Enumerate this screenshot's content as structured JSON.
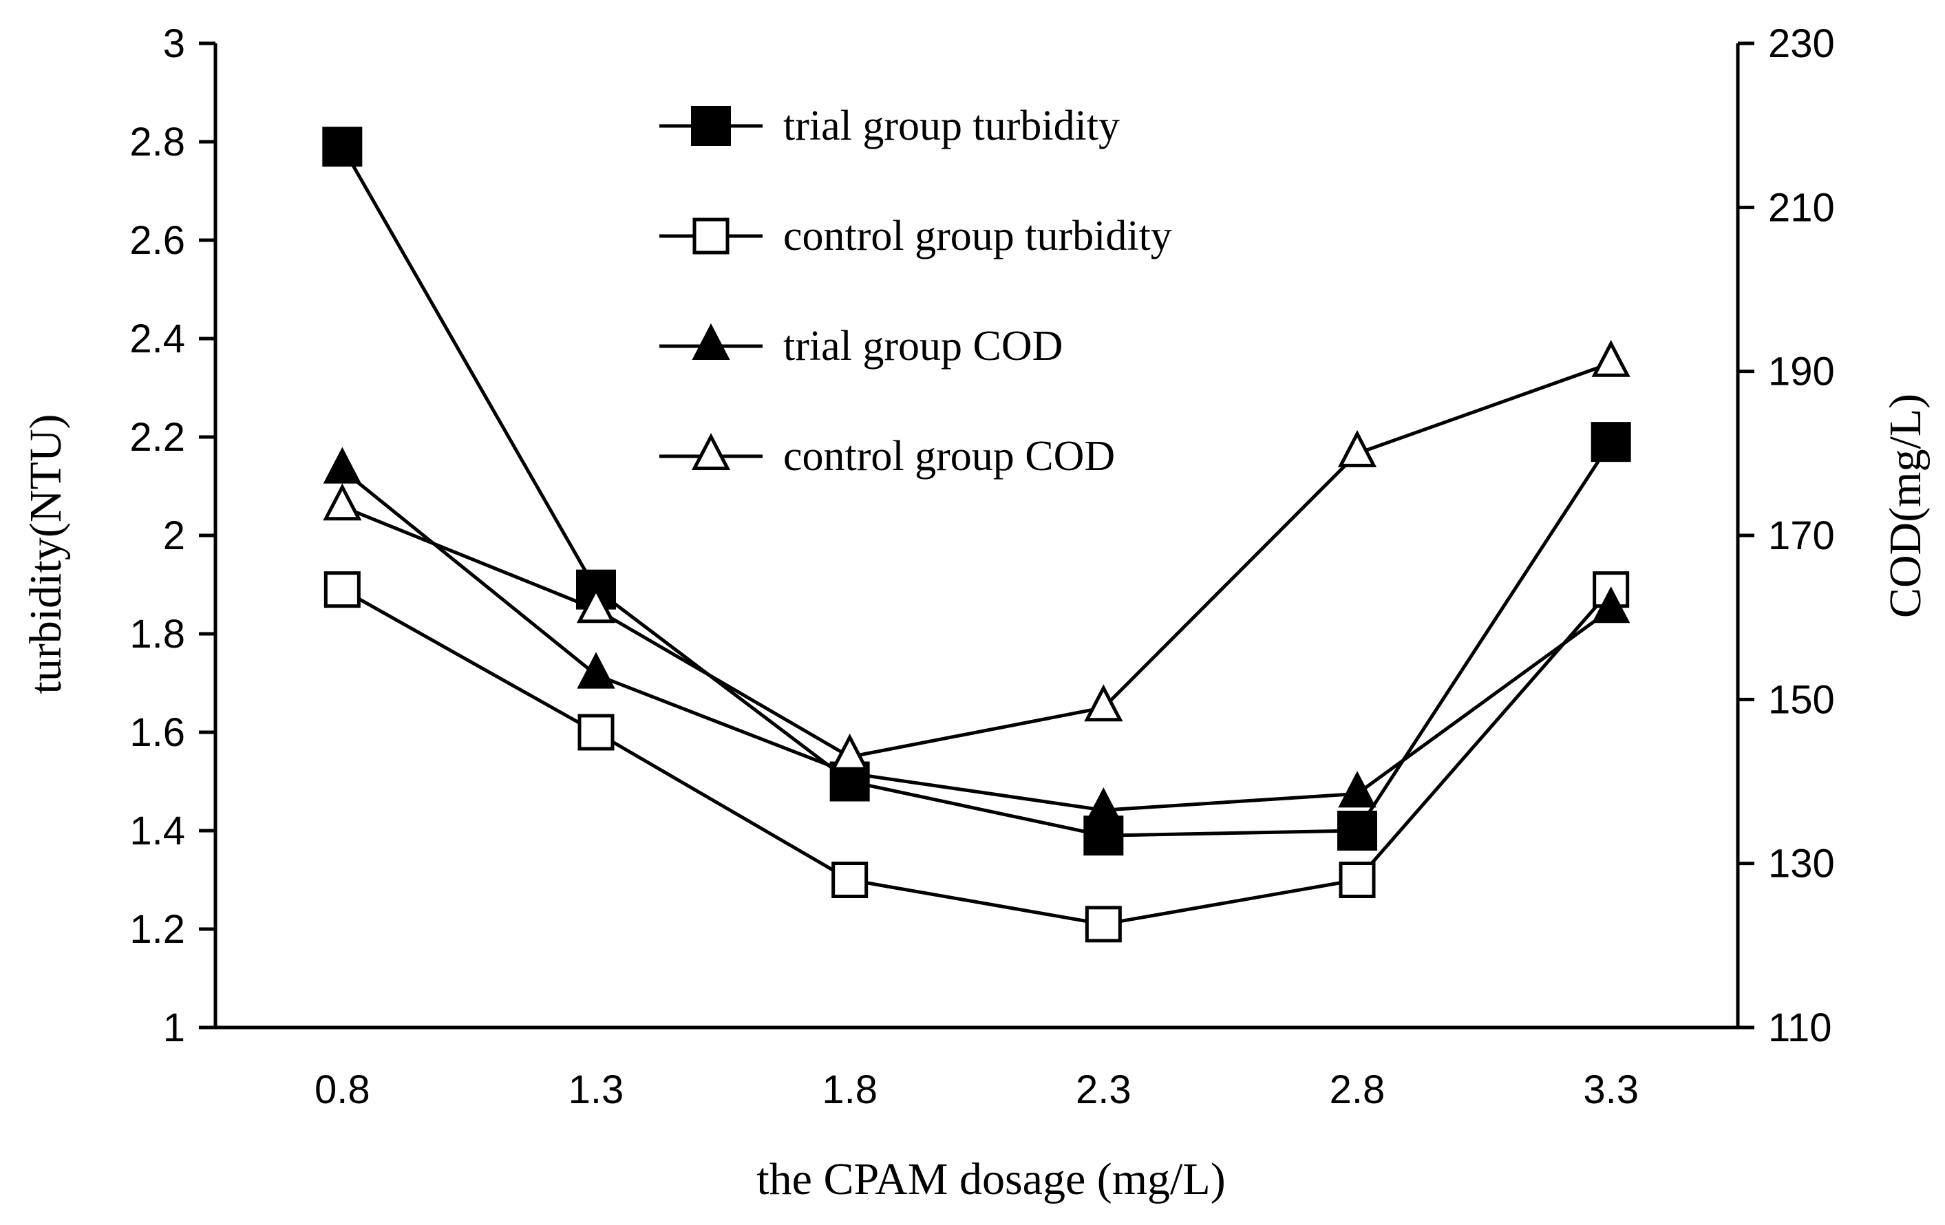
{
  "chart_data": {
    "type": "line",
    "xlabel": "the CPAM dosage (mg/L)",
    "ylabel_left": "turbidity(NTU)",
    "ylabel_right": "COD(mg/L)",
    "categories": [
      "0.8",
      "1.3",
      "1.8",
      "2.3",
      "2.8",
      "3.3"
    ],
    "x_values": [
      0.8,
      1.3,
      1.8,
      2.3,
      2.8,
      3.3
    ],
    "ylim_left": [
      1,
      3
    ],
    "yticks_left": [
      "1",
      "1.2",
      "1.4",
      "1.6",
      "1.8",
      "2",
      "2.2",
      "2.4",
      "2.6",
      "2.8",
      "3"
    ],
    "ylim_right": [
      110,
      230
    ],
    "yticks_right": [
      "110",
      "130",
      "150",
      "170",
      "190",
      "210",
      "230"
    ],
    "grid": false,
    "legend_position": "top-center",
    "series": [
      {
        "name": "trial group turbidity",
        "axis": "left",
        "marker": "square-filled",
        "values": [
          2.79,
          1.89,
          1.5,
          1.39,
          1.4,
          2.19
        ]
      },
      {
        "name": "control group turbidity",
        "axis": "left",
        "marker": "square-open",
        "values": [
          1.89,
          1.6,
          1.3,
          1.21,
          1.3,
          1.89
        ]
      },
      {
        "name": "trial group COD",
        "axis": "right",
        "marker": "triangle-filled",
        "values": [
          178,
          153,
          141,
          136.5,
          138.5,
          161
        ]
      },
      {
        "name": "control group COD",
        "axis": "right",
        "marker": "triangle-open",
        "values": [
          173.5,
          161,
          143,
          149,
          180,
          191
        ]
      }
    ]
  }
}
